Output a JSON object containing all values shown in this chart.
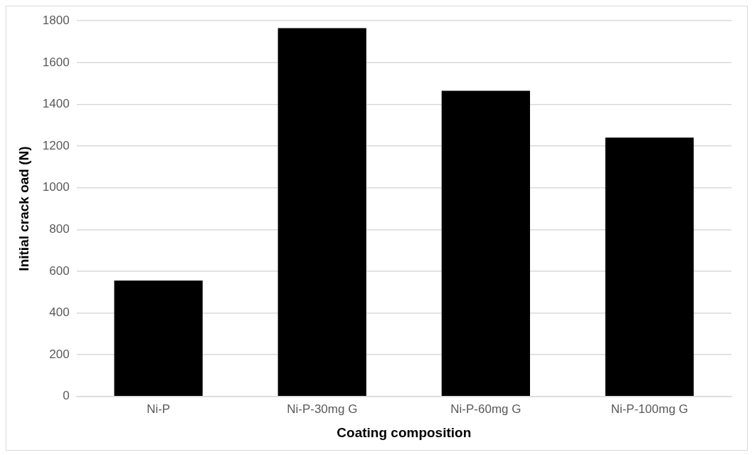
{
  "chart_data": {
    "type": "bar",
    "xlabel": "Coating composition",
    "ylabel": "Initial crack oad (N)",
    "categories": [
      "Ni-P",
      "Ni-P-30mg G",
      "Ni-P-60mg G",
      "Ni-P-100mg G"
    ],
    "values": [
      555,
      1765,
      1465,
      1240
    ],
    "color": "#000000",
    "ylim": [
      0,
      1800
    ],
    "yticks": [
      0,
      200,
      400,
      600,
      800,
      1000,
      1200,
      1400,
      1600,
      1800
    ],
    "grid": "y"
  }
}
